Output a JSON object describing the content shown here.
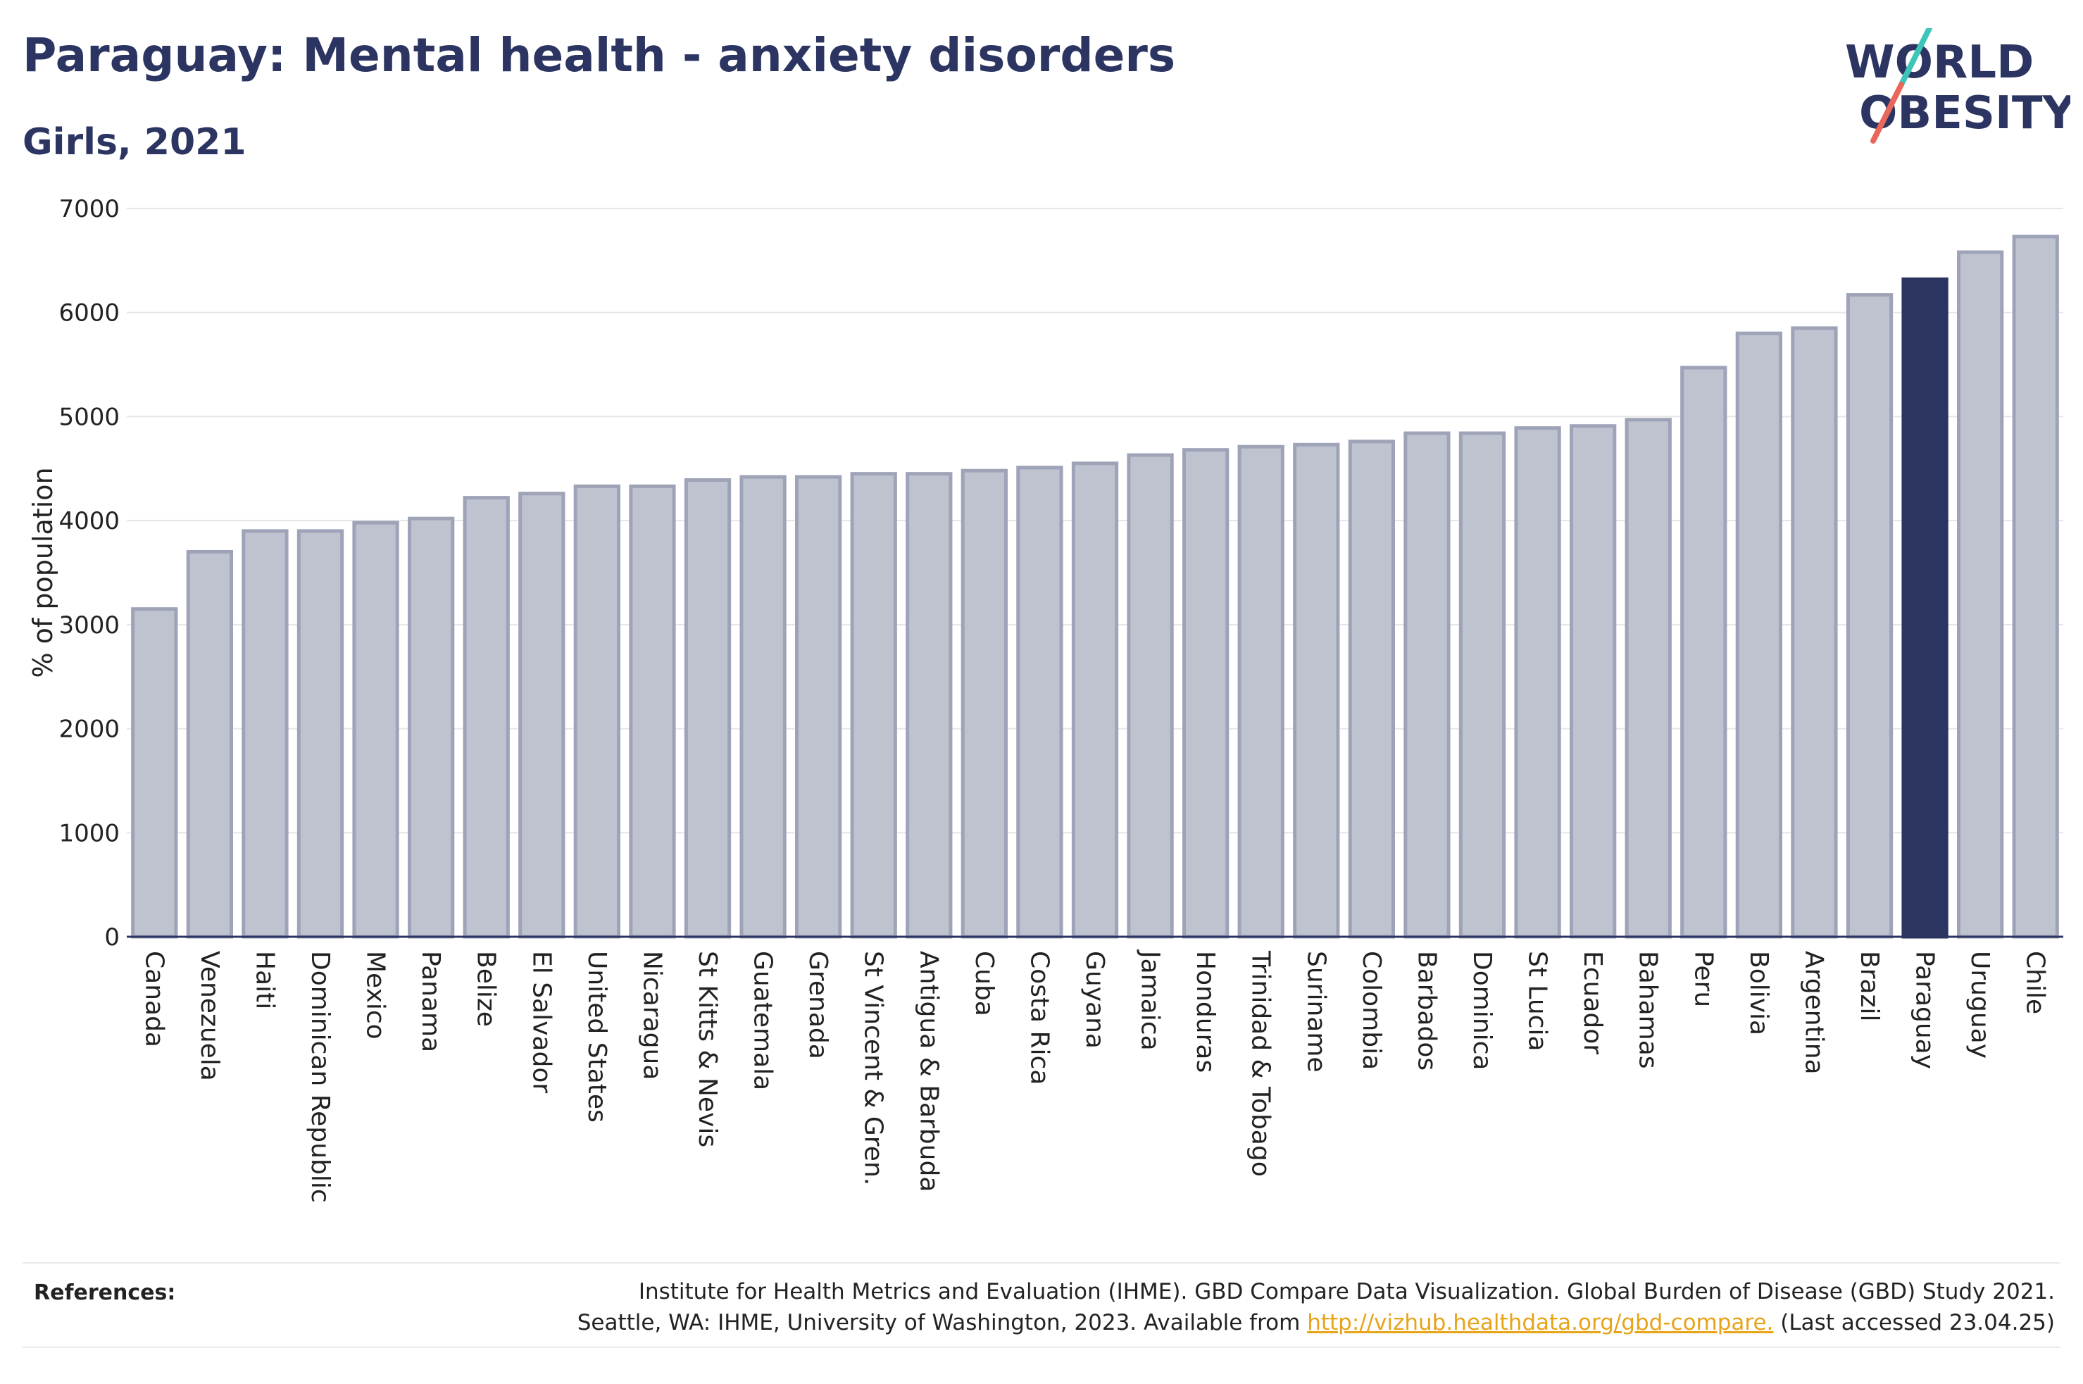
{
  "title": "Paraguay: Mental health - anxiety disorders",
  "subtitle": "Girls, 2021",
  "logo": {
    "line1": "W",
    "o": "O",
    "line1_rest": "RLD",
    "line2": "OBESITY",
    "accent_colors": [
      "#3cc5b8",
      "#e8675a"
    ]
  },
  "colors": {
    "bar": "#bfc2cf",
    "bar_border": "#9ea3b8",
    "highlight": "#2c3561",
    "grid": "#e6e6ea",
    "axis": "#2c3561"
  },
  "chart_data": {
    "type": "bar",
    "ylabel": "% of population",
    "ylim": [
      0,
      7000
    ],
    "yticks": [
      0,
      1000,
      2000,
      3000,
      4000,
      5000,
      6000,
      7000
    ],
    "highlight": "Paraguay",
    "categories": [
      "Canada",
      "Venezuela",
      "Haiti",
      "Dominican Republic",
      "Mexico",
      "Panama",
      "Belize",
      "El Salvador",
      "United States",
      "Nicaragua",
      "St Kitts & Nevis",
      "Guatemala",
      "Grenada",
      "St Vincent & Gren.",
      "Antigua & Barbuda",
      "Cuba",
      "Costa Rica",
      "Guyana",
      "Jamaica",
      "Honduras",
      "Trinidad & Tobago",
      "Suriname",
      "Colombia",
      "Barbados",
      "Dominica",
      "St Lucia",
      "Ecuador",
      "Bahamas",
      "Peru",
      "Bolivia",
      "Argentina",
      "Brazil",
      "Paraguay",
      "Uruguay",
      "Chile"
    ],
    "values": [
      3150,
      3700,
      3900,
      3900,
      3980,
      4020,
      4220,
      4260,
      4330,
      4330,
      4390,
      4420,
      4420,
      4450,
      4450,
      4480,
      4510,
      4550,
      4630,
      4680,
      4710,
      4730,
      4760,
      4840,
      4840,
      4890,
      4910,
      4970,
      5470,
      5800,
      5850,
      6170,
      6320,
      6580,
      6730
    ]
  },
  "references": {
    "label": "References:",
    "line1": "Institute for Health Metrics and Evaluation (IHME). GBD Compare Data Visualization. Global Burden of Disease (GBD) Study 2021.",
    "line2_prefix": "Seattle, WA: IHME, University of Washington, 2023. Available from ",
    "link": "http://vizhub.healthdata.org/gbd-compare.",
    "line2_suffix": " (Last accessed 23.04.25)"
  }
}
